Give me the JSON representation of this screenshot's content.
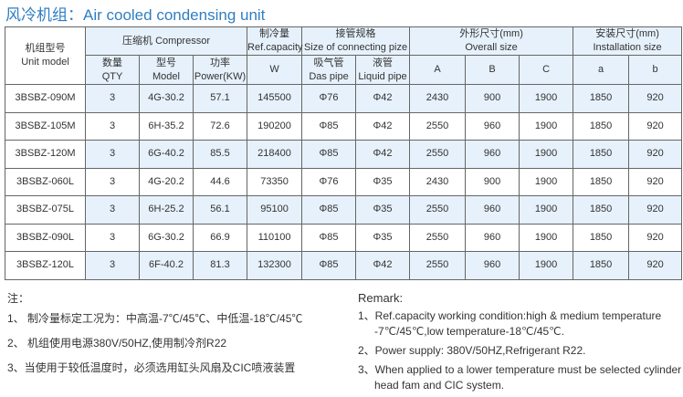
{
  "title": "风冷机组：Air cooled condensing unit",
  "header": {
    "unit_model_cn": "机组型号",
    "unit_model_en": "Unit model",
    "compressor": "压缩机 Compressor",
    "capacity_cn": "制冷量",
    "capacity_en": "Ref.capacity",
    "pipe_cn": "接管规格",
    "pipe_en": "Size of connecting pize",
    "overall_cn": "外形尺寸(mm)",
    "overall_en": "Overall size",
    "install_cn": "安装尺寸(mm)",
    "install_en": "Installation size",
    "qty_cn": "数量",
    "qty_en": "QTY",
    "model_cn": "型号",
    "model_en": "Model",
    "power_cn": "功率",
    "power_en": "Power(KW)",
    "w": "W",
    "das_cn": "吸气管",
    "das_en": "Das pipe",
    "liquid_cn": "液管",
    "liquid_en": "Liquid pipe",
    "A": "A",
    "B": "B",
    "C": "C",
    "a": "a",
    "b": "b"
  },
  "rows": [
    [
      "3BSBZ-090M",
      "3",
      "4G-30.2",
      "57.1",
      "145500",
      "Φ76",
      "Φ42",
      "2430",
      "900",
      "1900",
      "1850",
      "920"
    ],
    [
      "3BSBZ-105M",
      "3",
      "6H-35.2",
      "72.6",
      "190200",
      "Φ85",
      "Φ42",
      "2550",
      "960",
      "1900",
      "1850",
      "920"
    ],
    [
      "3BSBZ-120M",
      "3",
      "6G-40.2",
      "85.5",
      "218400",
      "Φ85",
      "Φ42",
      "2550",
      "960",
      "1900",
      "1850",
      "920"
    ],
    [
      "3BSBZ-060L",
      "3",
      "4G-20.2",
      "44.6",
      "73350",
      "Φ76",
      "Φ35",
      "2430",
      "900",
      "1900",
      "1850",
      "920"
    ],
    [
      "3BSBZ-075L",
      "3",
      "6H-25.2",
      "56.1",
      "95100",
      "Φ85",
      "Φ35",
      "2550",
      "960",
      "1900",
      "1850",
      "920"
    ],
    [
      "3BSBZ-090L",
      "3",
      "6G-30.2",
      "66.9",
      "110100",
      "Φ85",
      "Φ35",
      "2550",
      "960",
      "1900",
      "1850",
      "920"
    ],
    [
      "3BSBZ-120L",
      "3",
      "6F-40.2",
      "81.3",
      "132300",
      "Φ85",
      "Φ42",
      "2550",
      "960",
      "1900",
      "1850",
      "920"
    ]
  ],
  "notes_cn": {
    "title": "注：",
    "items": [
      "1、 制冷量标定工况为：中高温-7℃/45℃、中低温-18℃/45℃",
      "2、 机组使用电源380V/50HZ,使用制冷剂R22",
      "3、当使用于较低温度时，必须选用缸头风扇及CIC喷液装置"
    ]
  },
  "notes_en": {
    "title": "Remark:",
    "items": [
      "1、Ref.capacity working condition:high & medium temperature -7℃/45℃,low temperature-18℃/45℃.",
      "2、Power supply: 380V/50HZ,Refrigerant R22.",
      "3、When applied to a lower temperature must be selected cylinder head fam and CIC system."
    ]
  }
}
